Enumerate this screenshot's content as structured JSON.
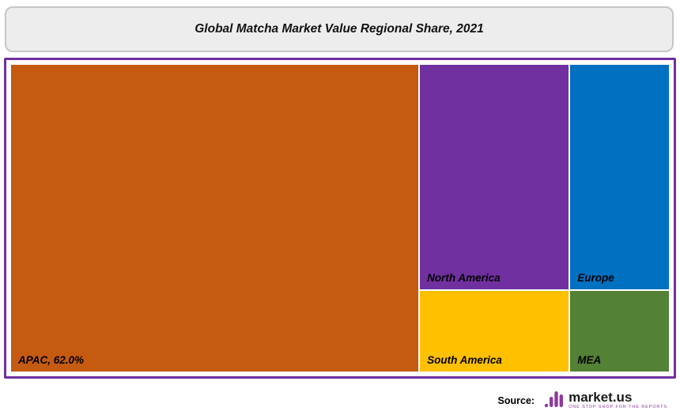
{
  "chart_data": {
    "type": "treemap",
    "title": "Global Matcha Market Value Regional Share, 2021",
    "unit": "% of global market value",
    "legend": "none",
    "cells": [
      {
        "region": "apac",
        "label": "APAC, 62.0%",
        "value": 62.0,
        "value_labeled_on_chart": true,
        "color": "#C55A11",
        "rect": {
          "x": 0,
          "y": 0,
          "w": 62.0,
          "h": 100
        }
      },
      {
        "region": "north-america",
        "label": "North America",
        "value": 17.0,
        "value_labeled_on_chart": false,
        "color": "#7030A0",
        "rect": {
          "x": 62.0,
          "y": 0,
          "w": 22.8,
          "h": 73.3
        }
      },
      {
        "region": "europe",
        "label": "Europe",
        "value": 10.5,
        "value_labeled_on_chart": false,
        "color": "#0070C0",
        "rect": {
          "x": 84.8,
          "y": 0,
          "w": 15.2,
          "h": 73.3
        }
      },
      {
        "region": "south-america",
        "label": "South America",
        "value": 6.5,
        "value_labeled_on_chart": false,
        "color": "#FFC000",
        "rect": {
          "x": 62.0,
          "y": 73.3,
          "w": 22.8,
          "h": 26.7
        }
      },
      {
        "region": "mea",
        "label": "MEA",
        "value": 4.0,
        "value_labeled_on_chart": false,
        "color": "#538135",
        "rect": {
          "x": 84.8,
          "y": 73.3,
          "w": 15.2,
          "h": 26.7
        }
      }
    ],
    "colors": {
      "chart_border": "#7030A0",
      "title_box_fill": "#EDEDED",
      "title_box_border": "#C6C6C6",
      "cell_gap": "#FFFFFF",
      "label_text": "#000000"
    }
  },
  "footer": {
    "source_label": "Source:",
    "brand_name": "market.us",
    "brand_tagline": "ONE STOP SHOP FOR THE REPORTS",
    "brand_color": "#8E3A9E"
  }
}
